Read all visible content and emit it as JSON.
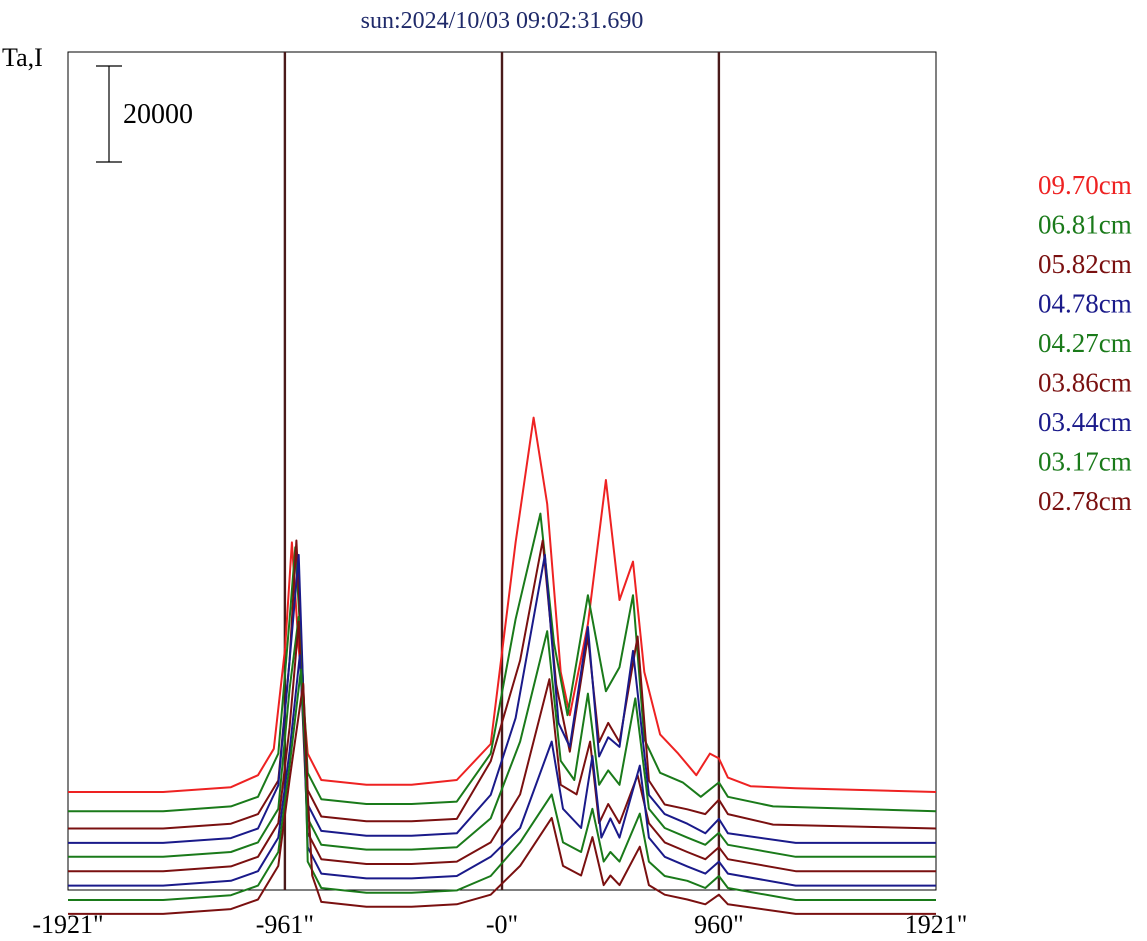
{
  "chart_data": {
    "type": "line",
    "title": "sun:2024/10/03 09:02:31.690",
    "ylabel": "Ta,I",
    "xlabel": "",
    "scale_bar_label": "20000",
    "x_ticks": [
      "-1921\"",
      "-961\"",
      "-0\"",
      "960\"",
      "1921\""
    ],
    "x_tick_values": [
      -1921,
      -961,
      0,
      960,
      1921
    ],
    "xlim": [
      -1921,
      1921
    ],
    "reference_lines_x": [
      -961,
      0,
      960
    ],
    "grid": false,
    "legend_position": "right",
    "series": [
      {
        "name": "09.70cm",
        "color": "#ee2222",
        "baseline": 20000,
        "points": [
          [
            -1921,
            0
          ],
          [
            -1500,
            0
          ],
          [
            -1200,
            1000
          ],
          [
            -1080,
            3500
          ],
          [
            -1010,
            9000
          ],
          [
            -960,
            30000
          ],
          [
            -930,
            52000
          ],
          [
            -900,
            30000
          ],
          [
            -860,
            8000
          ],
          [
            -800,
            2500
          ],
          [
            -700,
            2000
          ],
          [
            -600,
            1500
          ],
          [
            -400,
            1500
          ],
          [
            -200,
            2500
          ],
          [
            -50,
            10000
          ],
          [
            60,
            52000
          ],
          [
            140,
            78000
          ],
          [
            200,
            60000
          ],
          [
            260,
            25000
          ],
          [
            300,
            16000
          ],
          [
            380,
            35000
          ],
          [
            460,
            65000
          ],
          [
            520,
            40000
          ],
          [
            580,
            48000
          ],
          [
            630,
            25000
          ],
          [
            700,
            12000
          ],
          [
            780,
            8000
          ],
          [
            860,
            3500
          ],
          [
            920,
            8000
          ],
          [
            960,
            7000
          ],
          [
            1000,
            3000
          ],
          [
            1100,
            1200
          ],
          [
            1300,
            800
          ],
          [
            1921,
            0
          ]
        ]
      },
      {
        "name": "06.81cm",
        "color": "#1a7a1a",
        "baseline": 16000,
        "points": [
          [
            -1921,
            0
          ],
          [
            -1500,
            0
          ],
          [
            -1200,
            1000
          ],
          [
            -1080,
            3000
          ],
          [
            -990,
            12000
          ],
          [
            -940,
            40000
          ],
          [
            -915,
            55000
          ],
          [
            -890,
            35000
          ],
          [
            -860,
            8000
          ],
          [
            -800,
            2500
          ],
          [
            -600,
            1500
          ],
          [
            -400,
            1500
          ],
          [
            -200,
            2000
          ],
          [
            -50,
            12000
          ],
          [
            60,
            40000
          ],
          [
            170,
            62000
          ],
          [
            230,
            35000
          ],
          [
            290,
            20000
          ],
          [
            380,
            45000
          ],
          [
            460,
            25000
          ],
          [
            520,
            30000
          ],
          [
            580,
            45000
          ],
          [
            630,
            15000
          ],
          [
            700,
            8000
          ],
          [
            800,
            6000
          ],
          [
            880,
            3000
          ],
          [
            960,
            6000
          ],
          [
            1000,
            3000
          ],
          [
            1200,
            1000
          ],
          [
            1921,
            0
          ]
        ]
      },
      {
        "name": "05.82cm",
        "color": "#7a1010",
        "baseline": 12400,
        "points": [
          [
            -1921,
            0
          ],
          [
            -1500,
            0
          ],
          [
            -1200,
            1000
          ],
          [
            -1080,
            3000
          ],
          [
            -990,
            10000
          ],
          [
            -940,
            35000
          ],
          [
            -910,
            60000
          ],
          [
            -890,
            40000
          ],
          [
            -860,
            8000
          ],
          [
            -800,
            2500
          ],
          [
            -600,
            1500
          ],
          [
            -400,
            1500
          ],
          [
            -200,
            2000
          ],
          [
            -50,
            14000
          ],
          [
            80,
            35000
          ],
          [
            180,
            60000
          ],
          [
            240,
            30000
          ],
          [
            300,
            16000
          ],
          [
            380,
            40000
          ],
          [
            430,
            18000
          ],
          [
            470,
            22000
          ],
          [
            520,
            18000
          ],
          [
            600,
            40000
          ],
          [
            650,
            10000
          ],
          [
            720,
            5000
          ],
          [
            820,
            4000
          ],
          [
            900,
            3000
          ],
          [
            960,
            6000
          ],
          [
            1000,
            3000
          ],
          [
            1200,
            800
          ],
          [
            1921,
            0
          ]
        ]
      },
      {
        "name": "04.78cm",
        "color": "#1a1a8a",
        "baseline": 9400,
        "points": [
          [
            -1921,
            0
          ],
          [
            -1500,
            0
          ],
          [
            -1200,
            1000
          ],
          [
            -1080,
            3000
          ],
          [
            -990,
            12000
          ],
          [
            -940,
            38000
          ],
          [
            -900,
            60000
          ],
          [
            -880,
            32000
          ],
          [
            -860,
            8000
          ],
          [
            -800,
            2500
          ],
          [
            -600,
            1500
          ],
          [
            -400,
            1500
          ],
          [
            -200,
            2000
          ],
          [
            -50,
            10000
          ],
          [
            60,
            26000
          ],
          [
            190,
            60000
          ],
          [
            250,
            25000
          ],
          [
            300,
            20000
          ],
          [
            380,
            45000
          ],
          [
            430,
            18000
          ],
          [
            470,
            22000
          ],
          [
            520,
            20000
          ],
          [
            580,
            40000
          ],
          [
            650,
            10000
          ],
          [
            720,
            6000
          ],
          [
            820,
            4000
          ],
          [
            900,
            2000
          ],
          [
            960,
            5000
          ],
          [
            1000,
            2000
          ],
          [
            1300,
            0
          ],
          [
            1921,
            0
          ]
        ]
      },
      {
        "name": "04.27cm",
        "color": "#1a7a1a",
        "baseline": 6500,
        "points": [
          [
            -1921,
            0
          ],
          [
            -1500,
            0
          ],
          [
            -1200,
            1000
          ],
          [
            -1080,
            3000
          ],
          [
            -990,
            10000
          ],
          [
            -940,
            35000
          ],
          [
            -900,
            50000
          ],
          [
            -880,
            30000
          ],
          [
            -860,
            8000
          ],
          [
            -800,
            2500
          ],
          [
            -600,
            1500
          ],
          [
            -400,
            1500
          ],
          [
            -200,
            2000
          ],
          [
            -50,
            8000
          ],
          [
            80,
            24000
          ],
          [
            200,
            47000
          ],
          [
            260,
            20000
          ],
          [
            320,
            16000
          ],
          [
            380,
            34000
          ],
          [
            430,
            15000
          ],
          [
            470,
            18000
          ],
          [
            520,
            15000
          ],
          [
            590,
            33000
          ],
          [
            650,
            10000
          ],
          [
            720,
            6000
          ],
          [
            820,
            4000
          ],
          [
            900,
            2500
          ],
          [
            960,
            5000
          ],
          [
            1000,
            2500
          ],
          [
            1300,
            0
          ],
          [
            1921,
            0
          ]
        ]
      },
      {
        "name": "03.86cm",
        "color": "#7a1010",
        "baseline": 3500,
        "points": [
          [
            -1921,
            0
          ],
          [
            -1500,
            0
          ],
          [
            -1200,
            1000
          ],
          [
            -1080,
            3000
          ],
          [
            -990,
            10000
          ],
          [
            -940,
            30000
          ],
          [
            -900,
            52000
          ],
          [
            -880,
            30000
          ],
          [
            -860,
            8000
          ],
          [
            -800,
            2500
          ],
          [
            -600,
            1500
          ],
          [
            -400,
            1500
          ],
          [
            -200,
            2000
          ],
          [
            -50,
            6000
          ],
          [
            80,
            16000
          ],
          [
            210,
            40000
          ],
          [
            260,
            18000
          ],
          [
            330,
            16000
          ],
          [
            390,
            27000
          ],
          [
            430,
            10000
          ],
          [
            470,
            14000
          ],
          [
            520,
            10000
          ],
          [
            600,
            20000
          ],
          [
            650,
            10000
          ],
          [
            720,
            6000
          ],
          [
            820,
            4000
          ],
          [
            900,
            2500
          ],
          [
            960,
            5000
          ],
          [
            1000,
            2500
          ],
          [
            1300,
            0
          ],
          [
            1921,
            0
          ]
        ]
      },
      {
        "name": "03.44cm",
        "color": "#1a1a8a",
        "baseline": 500,
        "points": [
          [
            -1921,
            0
          ],
          [
            -1500,
            0
          ],
          [
            -1200,
            1000
          ],
          [
            -1080,
            3000
          ],
          [
            -990,
            10000
          ],
          [
            -940,
            28000
          ],
          [
            -895,
            48000
          ],
          [
            -875,
            30000
          ],
          [
            -860,
            8000
          ],
          [
            -800,
            2500
          ],
          [
            -600,
            1500
          ],
          [
            -400,
            1500
          ],
          [
            -200,
            2000
          ],
          [
            -50,
            6000
          ],
          [
            80,
            12000
          ],
          [
            220,
            30000
          ],
          [
            270,
            16000
          ],
          [
            350,
            12000
          ],
          [
            400,
            27000
          ],
          [
            440,
            10000
          ],
          [
            480,
            14000
          ],
          [
            520,
            10000
          ],
          [
            610,
            25000
          ],
          [
            650,
            10000
          ],
          [
            720,
            6000
          ],
          [
            820,
            4000
          ],
          [
            900,
            2500
          ],
          [
            960,
            5000
          ],
          [
            1000,
            2500
          ],
          [
            1300,
            0
          ],
          [
            1921,
            0
          ]
        ]
      },
      {
        "name": "03.17cm",
        "color": "#1a7a1a",
        "baseline": -2500,
        "points": [
          [
            -1921,
            0
          ],
          [
            -1500,
            0
          ],
          [
            -1200,
            1000
          ],
          [
            -1080,
            3000
          ],
          [
            -990,
            10000
          ],
          [
            -940,
            28000
          ],
          [
            -890,
            48000
          ],
          [
            -870,
            30000
          ],
          [
            -860,
            8000
          ],
          [
            -800,
            2500
          ],
          [
            -600,
            1500
          ],
          [
            -400,
            1500
          ],
          [
            -200,
            2000
          ],
          [
            -50,
            5000
          ],
          [
            80,
            12000
          ],
          [
            220,
            22000
          ],
          [
            270,
            12000
          ],
          [
            350,
            10000
          ],
          [
            400,
            19000
          ],
          [
            450,
            8000
          ],
          [
            480,
            10000
          ],
          [
            520,
            8000
          ],
          [
            610,
            18000
          ],
          [
            650,
            8000
          ],
          [
            720,
            5000
          ],
          [
            820,
            4000
          ],
          [
            900,
            2500
          ],
          [
            960,
            5000
          ],
          [
            1000,
            2500
          ],
          [
            1300,
            0
          ],
          [
            1921,
            0
          ]
        ]
      },
      {
        "name": "02.78cm",
        "color": "#7a1010",
        "baseline": -5400,
        "points": [
          [
            -1921,
            0
          ],
          [
            -1500,
            0
          ],
          [
            -1200,
            1000
          ],
          [
            -1080,
            3000
          ],
          [
            -990,
            10000
          ],
          [
            -940,
            28000
          ],
          [
            -880,
            48000
          ],
          [
            -860,
            25000
          ],
          [
            -840,
            8000
          ],
          [
            -800,
            2500
          ],
          [
            -600,
            1500
          ],
          [
            -400,
            1500
          ],
          [
            -200,
            2000
          ],
          [
            -50,
            4000
          ],
          [
            80,
            10000
          ],
          [
            220,
            20000
          ],
          [
            270,
            10000
          ],
          [
            350,
            8000
          ],
          [
            400,
            16000
          ],
          [
            450,
            6000
          ],
          [
            480,
            8000
          ],
          [
            520,
            6000
          ],
          [
            610,
            14000
          ],
          [
            650,
            6000
          ],
          [
            720,
            4000
          ],
          [
            820,
            3000
          ],
          [
            900,
            2000
          ],
          [
            960,
            4000
          ],
          [
            1000,
            2000
          ],
          [
            1300,
            0
          ],
          [
            1921,
            0
          ]
        ]
      }
    ]
  }
}
